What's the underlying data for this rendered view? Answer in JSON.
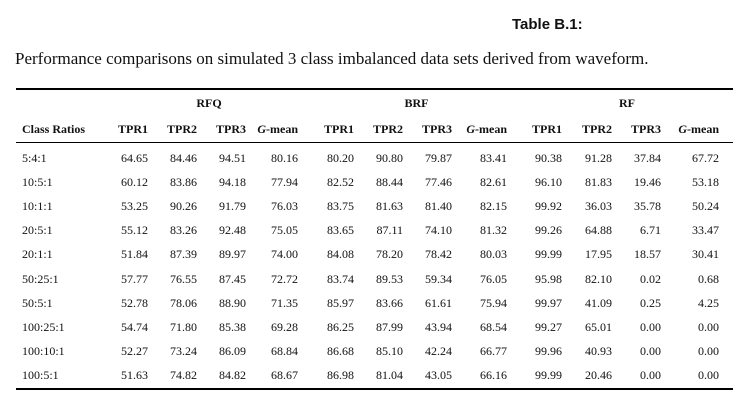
{
  "table_label": "Table B.1:",
  "caption": "Performance comparisons on simulated 3 class imbalanced data sets derived from waveform.",
  "groups": [
    "RFQ",
    "BRF",
    "RF"
  ],
  "columns": {
    "ratio": "Class Ratios",
    "tpr1": "TPR1",
    "tpr2": "TPR2",
    "tpr3": "TPR3",
    "g_prefix": "G",
    "g_suffix": "-mean"
  },
  "rows": [
    [
      "5:4:1",
      "64.65",
      "84.46",
      "94.51",
      "80.16",
      "80.20",
      "90.80",
      "79.87",
      "83.41",
      "90.38",
      "91.28",
      "37.84",
      "67.72"
    ],
    [
      "10:5:1",
      "60.12",
      "83.86",
      "94.18",
      "77.94",
      "82.52",
      "88.44",
      "77.46",
      "82.61",
      "96.10",
      "81.83",
      "19.46",
      "53.18"
    ],
    [
      "10:1:1",
      "53.25",
      "90.26",
      "91.79",
      "76.03",
      "83.75",
      "81.63",
      "81.40",
      "82.15",
      "99.92",
      "36.03",
      "35.78",
      "50.24"
    ],
    [
      "20:5:1",
      "55.12",
      "83.26",
      "92.48",
      "75.05",
      "83.65",
      "87.11",
      "74.10",
      "81.32",
      "99.26",
      "64.88",
      "6.71",
      "33.47"
    ],
    [
      "20:1:1",
      "51.84",
      "87.39",
      "89.97",
      "74.00",
      "84.08",
      "78.20",
      "78.42",
      "80.03",
      "99.99",
      "17.95",
      "18.57",
      "30.41"
    ],
    [
      "50:25:1",
      "57.77",
      "76.55",
      "87.45",
      "72.72",
      "83.74",
      "89.53",
      "59.34",
      "76.05",
      "95.98",
      "82.10",
      "0.02",
      "0.68"
    ],
    [
      "50:5:1",
      "52.78",
      "78.06",
      "88.90",
      "71.35",
      "85.97",
      "83.66",
      "61.61",
      "75.94",
      "99.97",
      "41.09",
      "0.25",
      "4.25"
    ],
    [
      "100:25:1",
      "54.74",
      "71.80",
      "85.38",
      "69.28",
      "86.25",
      "87.99",
      "43.94",
      "68.54",
      "99.27",
      "65.01",
      "0.00",
      "0.00"
    ],
    [
      "100:10:1",
      "52.27",
      "73.24",
      "86.09",
      "68.84",
      "86.68",
      "85.10",
      "42.24",
      "66.77",
      "99.96",
      "40.93",
      "0.00",
      "0.00"
    ],
    [
      "100:5:1",
      "51.63",
      "74.82",
      "84.82",
      "68.67",
      "86.98",
      "81.04",
      "43.05",
      "66.16",
      "99.99",
      "20.46",
      "0.00",
      "0.00"
    ]
  ]
}
